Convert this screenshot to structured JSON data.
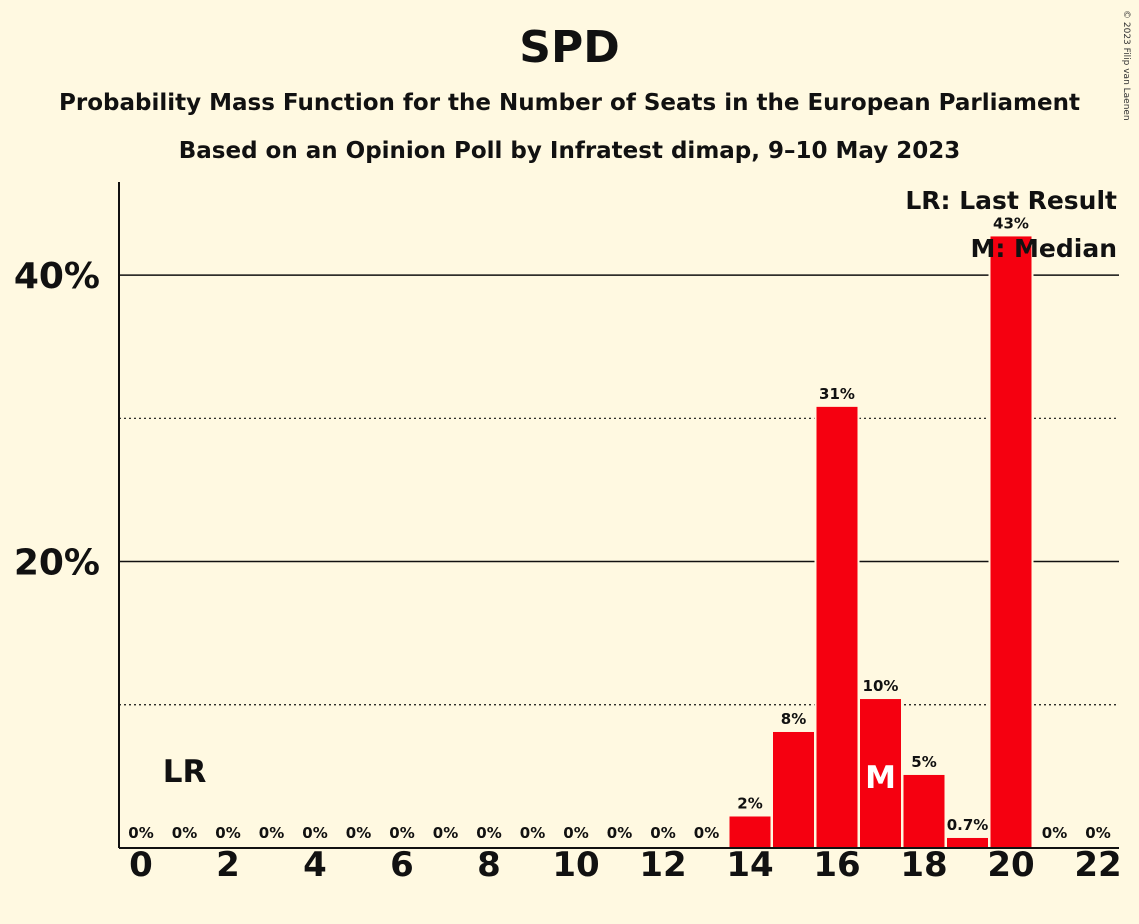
{
  "title": "SPD",
  "subtitle": "Probability Mass Function for the Number of Seats in the European Parliament",
  "subtitle2": "Based on an Opinion Poll by Infratest dimap, 9–10 May 2023",
  "copyright": "© 2023 Filip van Laenen",
  "legend": {
    "lr": "LR: Last Result",
    "m": "M: Median"
  },
  "markers": {
    "last_result_label": "LR",
    "last_result_seats": 1,
    "median_label": "M",
    "median_seats": 17
  },
  "chart_data": {
    "type": "bar",
    "x": [
      0,
      1,
      2,
      3,
      4,
      5,
      6,
      7,
      8,
      9,
      10,
      11,
      12,
      13,
      14,
      15,
      16,
      17,
      18,
      19,
      20,
      21,
      22
    ],
    "values": [
      0,
      0,
      0,
      0,
      0,
      0,
      0,
      0,
      0,
      0,
      0,
      0,
      0,
      0,
      2.2,
      8.1,
      30.8,
      10.4,
      5.1,
      0.7,
      42.7,
      0,
      0
    ],
    "value_labels": [
      "0%",
      "0%",
      "0%",
      "0%",
      "0%",
      "0%",
      "0%",
      "0%",
      "0%",
      "0%",
      "0%",
      "0%",
      "0%",
      "0%",
      "2%",
      "8%",
      "31%",
      "10%",
      "5%",
      "0.7%",
      "43%",
      "0%",
      "0%"
    ],
    "x_tick_labels": [
      "0",
      "2",
      "4",
      "6",
      "8",
      "10",
      "12",
      "14",
      "16",
      "18",
      "20",
      "22"
    ],
    "x_ticks": [
      0,
      2,
      4,
      6,
      8,
      10,
      12,
      14,
      16,
      18,
      20,
      22
    ],
    "y_ticks": [
      20,
      40
    ],
    "y_tick_labels": [
      "20%",
      "40%"
    ],
    "y_minor_ticks": [
      10,
      30
    ],
    "ylim": [
      0,
      46.5
    ],
    "bar_color": "#f50010",
    "grid": true
  }
}
